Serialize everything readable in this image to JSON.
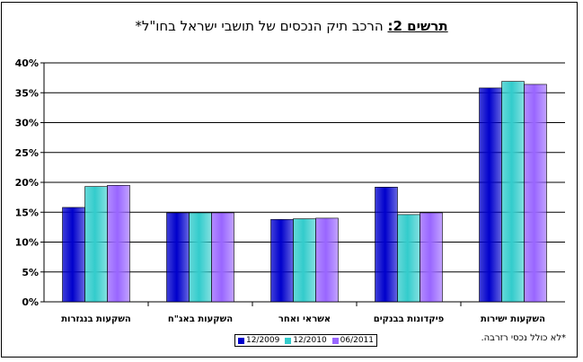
{
  "title": {
    "prefix": "תרשים 2:",
    "text": " הרכב תיק הנכסים של תושבי ישראל בחו\"ל*"
  },
  "footnote": "*לא כולל נכסי רזרבה.",
  "colors": {
    "series": [
      "#0000cc",
      "#33cccc",
      "#9966ff"
    ],
    "grid": "#000000",
    "axis": "#000000"
  },
  "chart_data": {
    "type": "bar",
    "categories": [
      "השקעות בנגזרות",
      "השקעות באג\"ח",
      "אשראי ואחר",
      "פיקדונות בבנקים",
      "השקעות ישירות"
    ],
    "series": [
      {
        "name": "12/2009",
        "values": [
          15.8,
          14.9,
          13.8,
          19.2,
          35.8
        ]
      },
      {
        "name": "12/2010",
        "values": [
          19.3,
          14.9,
          13.9,
          14.6,
          36.9
        ]
      },
      {
        "name": "06/2011",
        "values": [
          19.5,
          14.9,
          14.0,
          14.9,
          36.4
        ]
      }
    ],
    "ylim": [
      0,
      40
    ],
    "yticks": [
      "0%",
      "5%",
      "10%",
      "15%",
      "20%",
      "25%",
      "30%",
      "35%",
      "40%"
    ],
    "grid": true,
    "legend_position": "bottom"
  }
}
